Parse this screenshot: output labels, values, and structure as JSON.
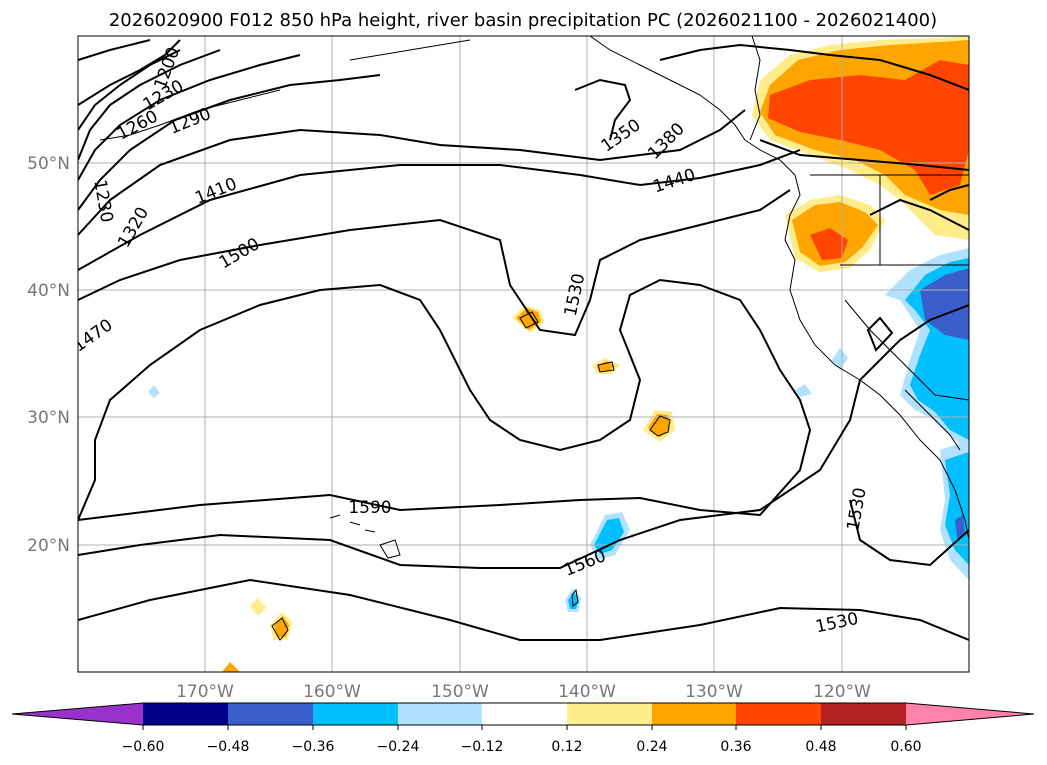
{
  "map": {
    "title": "2026020900 F012 850 hPa height, river basin precipitation PC (2026021100 - 2026021400)",
    "lon_labels": [
      "170°W",
      "160°W",
      "150°W",
      "140°W",
      "130°W",
      "120°W"
    ],
    "lat_labels": [
      "50°N",
      "40°N",
      "30°N",
      "20°N"
    ],
    "contour_labels": [
      "1590",
      "1560",
      "1530",
      "1530",
      "1530",
      "1500",
      "1470",
      "1440",
      "1410",
      "1380",
      "1350",
      "1320",
      "1290",
      "1260",
      "1230",
      "1230",
      "1200"
    ]
  },
  "colorbar": {
    "ticks": [
      "−0.60",
      "−0.48",
      "−0.36",
      "−0.24",
      "−0.12",
      "0.12",
      "0.24",
      "0.36",
      "0.48",
      "0.60"
    ],
    "colors": [
      "#9932cc",
      "#00008b",
      "#3a5fcd",
      "#00bfff",
      "#b0e2ff",
      "#ffffff",
      "#ffec8b",
      "#ffa500",
      "#ff4500",
      "#b22222",
      "#ff82ab"
    ]
  },
  "palette": {
    "grid": "#b0b0b0",
    "contour": "#000000",
    "coast": "#000000"
  }
}
